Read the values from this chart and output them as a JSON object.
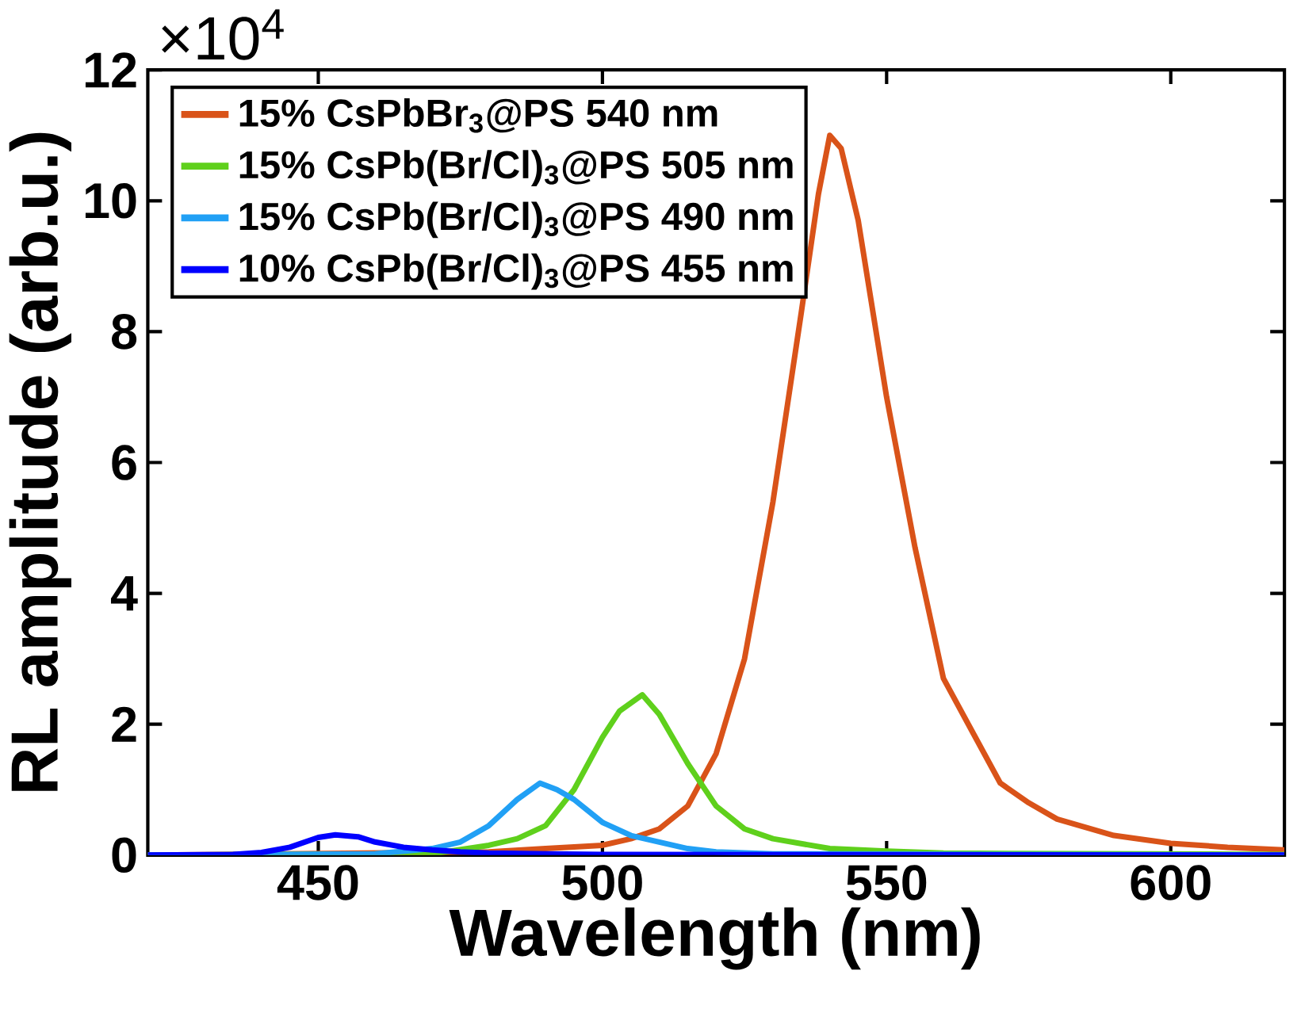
{
  "chart_data": {
    "type": "line",
    "xlabel": "Wavelength (nm)",
    "ylabel": "RL amplitude (arb.u.)",
    "annotations": [
      "×10$^{4}$"
    ],
    "xlim": [
      420,
      620
    ],
    "ylim": [
      0,
      12
    ],
    "xticks": [
      450,
      500,
      550,
      600
    ],
    "yticks": [
      0,
      2,
      4,
      6,
      8,
      10,
      12
    ],
    "legend": "top left",
    "series": [
      {
        "name": "15% CsPbBr$_{3}$@PS 540 nm",
        "color": "#d95319",
        "x": [
          420,
          480,
          490,
          500,
          505,
          510,
          515,
          520,
          525,
          530,
          535,
          538,
          540,
          542,
          545,
          550,
          555,
          560,
          565,
          570,
          575,
          580,
          590,
          600,
          610,
          620
        ],
        "values": [
          0,
          0.05,
          0.1,
          0.15,
          0.25,
          0.4,
          0.75,
          1.55,
          3.0,
          5.4,
          8.3,
          10.1,
          11.0,
          10.8,
          9.7,
          7.0,
          4.7,
          2.7,
          1.9,
          1.1,
          0.8,
          0.55,
          0.3,
          0.18,
          0.12,
          0.08
        ]
      },
      {
        "name": "15% CsPb(Br/Cl)$_{3}$@PS 505 nm",
        "color": "#5fd01c",
        "x": [
          420,
          470,
          480,
          485,
          490,
          495,
          500,
          503,
          507,
          510,
          515,
          520,
          525,
          530,
          540,
          550,
          560,
          620
        ],
        "values": [
          0,
          0.02,
          0.15,
          0.25,
          0.45,
          1.0,
          1.8,
          2.2,
          2.45,
          2.15,
          1.4,
          0.75,
          0.4,
          0.25,
          0.1,
          0.06,
          0.03,
          0.01
        ]
      },
      {
        "name": "15% CsPb(Br/Cl)$_{3}$@PS 490 nm",
        "color": "#21a0f5",
        "x": [
          420,
          460,
          470,
          475,
          480,
          485,
          489,
          492,
          495,
          500,
          505,
          510,
          515,
          520,
          530,
          620
        ],
        "values": [
          0,
          0.02,
          0.1,
          0.2,
          0.45,
          0.85,
          1.1,
          1.0,
          0.85,
          0.5,
          0.3,
          0.2,
          0.1,
          0.05,
          0.02,
          0
        ]
      },
      {
        "name": "10% CsPb(Br/Cl)$_{3}$@PS 455 nm",
        "color": "#0000ff",
        "x": [
          420,
          435,
          440,
          445,
          450,
          453,
          457,
          460,
          465,
          470,
          475,
          480,
          490,
          500,
          620
        ],
        "values": [
          0,
          0.01,
          0.04,
          0.12,
          0.27,
          0.31,
          0.28,
          0.2,
          0.12,
          0.08,
          0.05,
          0.03,
          0.02,
          0.01,
          0
        ]
      }
    ]
  }
}
